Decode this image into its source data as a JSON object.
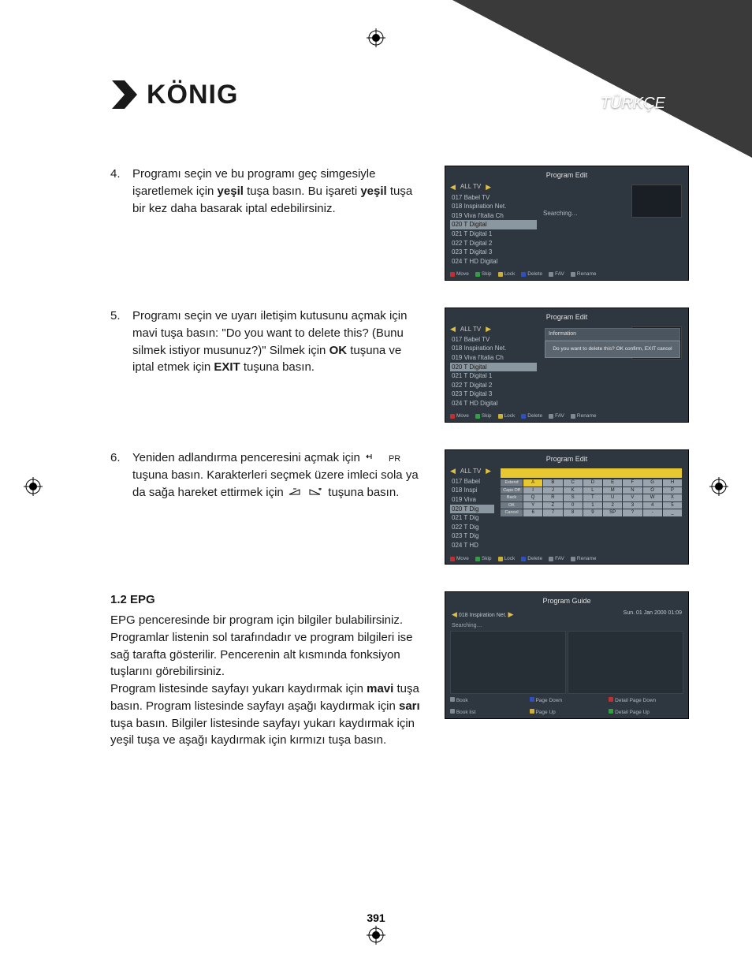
{
  "language_label": "TÜRKÇE",
  "logo_text": "KÖNIG",
  "page_number": "391",
  "items": {
    "4": {
      "num": "4.",
      "text_parts": [
        "Programı seçin ve bu programı geç simgesiyle işaretlemek için ",
        "yeşil",
        " tuşa basın. Bu işareti ",
        "yeşil",
        " tuşa bir kez daha basarak iptal edebilirsiniz."
      ]
    },
    "5": {
      "num": "5.",
      "text_parts": [
        "Programı seçin ve uyarı iletişim kutusunu açmak için mavi tuşa basın: \"Do you want to delete this? (Bunu silmek istiyor musunuz?)\" Silmek için ",
        "OK",
        " tuşuna ve iptal etmek için ",
        "EXIT",
        " tuşuna basın."
      ]
    },
    "6": {
      "num": "6.",
      "pre": "Yeniden adlandırma penceresini açmak için ",
      "mid": " tuşuna basın. Karakterleri seçmek üzere imleci sola ya da sağa hareket ettirmek için ",
      "post": " tuşuna basın.",
      "pr_label": "PR"
    }
  },
  "epg": {
    "heading": "1.2  EPG",
    "body_parts": [
      "EPG penceresinde bir program için bilgiler bulabilirsiniz. Programlar listenin sol tarafındadır ve program bilgileri ise sağ tarafta gösterilir. Pencerenin alt kısmında fonksiyon tuşlarını görebilirsiniz.",
      "Program listesinde sayfayı yukarı kaydırmak için ",
      "mavi",
      " tuşa basın. Program listesinde sayfayı aşağı kaydırmak için ",
      "sarı",
      " tuşa basın. Bilgiler listesinde sayfayı yukarı kaydırmak için yeşil tuşa ve aşağı kaydırmak için kırmızı tuşa basın."
    ]
  },
  "screenshots": {
    "common": {
      "title": "Program Edit",
      "tab": "ALL TV",
      "channels": [
        "017 Babel TV",
        "018 Inspiration Net.",
        "019 Viva l'Italia Ch",
        "020 T Digital",
        "021 T Digital 1",
        "022 T Digital 2",
        "023 T Digital 3",
        "024 T HD Digital"
      ],
      "selected_index": 3,
      "btm": {
        "move": "Move",
        "skip": "Skip",
        "lock": "Lock",
        "delete": "Delete",
        "fav": "FAV",
        "rename": "Rename"
      }
    },
    "s4": {
      "searching": "Searching…"
    },
    "s5": {
      "info_label": "Information",
      "dialog": "Do you want to delete this?\nOK confirm, EXIT cancel"
    },
    "s6": {
      "kb_side": [
        "Extend",
        "Caps Off",
        "Back",
        "OK",
        "Cancel"
      ],
      "kb_rows": [
        [
          "A",
          "B",
          "C",
          "D",
          "E",
          "F",
          "G",
          "H"
        ],
        [
          "I",
          "J",
          "K",
          "L",
          "M",
          "N",
          "O",
          "P"
        ],
        [
          "Q",
          "R",
          "S",
          "T",
          "U",
          "V",
          "W",
          "X"
        ],
        [
          "Y",
          "Z",
          "0",
          "1",
          "2",
          "3",
          "4",
          "5"
        ],
        [
          "6",
          "7",
          "8",
          "9",
          "SP",
          "?",
          "-",
          "_"
        ]
      ]
    },
    "guide": {
      "title": "Program Guide",
      "channel": "018 Inspiration Net.",
      "datetime": "Sun.  01 Jan 2000  01:09",
      "searching": "Searching…",
      "btm": {
        "book": "Book",
        "book_list": "Book list",
        "page_down": "Page Down",
        "page_up": "Page Up",
        "detail_down": "Detail Page Down",
        "detail_up": "Detail Page Up"
      }
    }
  },
  "colors": {
    "page_bg": "#ffffff",
    "text": "#1a1a1a",
    "triangle": "#3a3a3a",
    "scr_bg": "#2e3740",
    "kb_yellow": "#e8c830"
  }
}
